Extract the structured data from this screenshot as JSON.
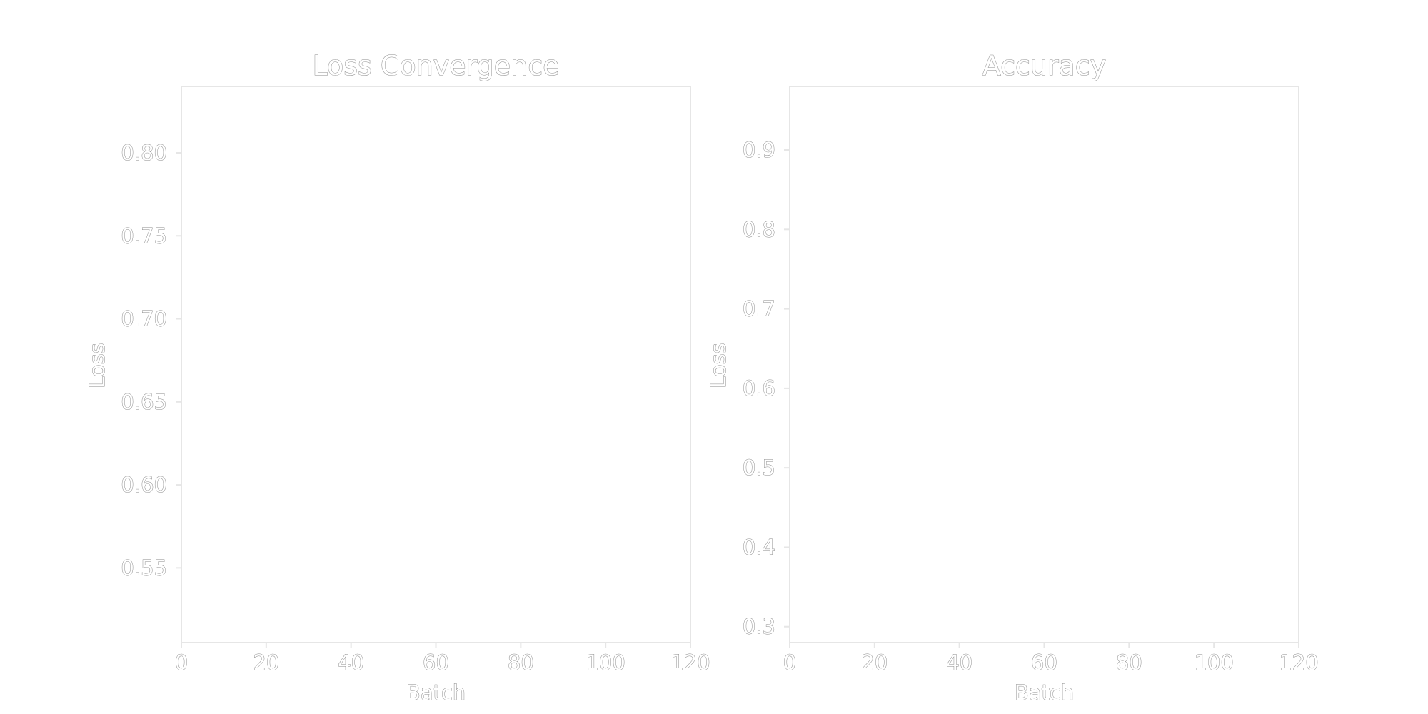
{
  "chart_data": [
    {
      "type": "line",
      "title": "Loss Convergence",
      "xlabel": "Batch",
      "ylabel": "Loss",
      "xlim": [
        0,
        120
      ],
      "ylim": [
        0.505,
        0.84
      ],
      "xticks": [
        0,
        20,
        40,
        60,
        80,
        100,
        120
      ],
      "xtick_labels": [
        "0",
        "20",
        "40",
        "60",
        "80",
        "100",
        "120"
      ],
      "yticks": [
        0.55,
        0.6,
        0.65,
        0.7,
        0.75,
        0.8
      ],
      "ytick_labels": [
        "0.55",
        "0.60",
        "0.65",
        "0.70",
        "0.75",
        "0.80"
      ],
      "grid": false,
      "series": []
    },
    {
      "type": "line",
      "title": "Accuracy",
      "xlabel": "Batch",
      "ylabel": "Loss",
      "xlim": [
        0,
        120
      ],
      "ylim": [
        0.28,
        0.98
      ],
      "xticks": [
        0,
        20,
        40,
        60,
        80,
        100,
        120
      ],
      "xtick_labels": [
        "0",
        "20",
        "40",
        "60",
        "80",
        "100",
        "120"
      ],
      "yticks": [
        0.3,
        0.4,
        0.5,
        0.6,
        0.7,
        0.8,
        0.9
      ],
      "ytick_labels": [
        "0.3",
        "0.4",
        "0.5",
        "0.6",
        "0.7",
        "0.8",
        "0.9"
      ],
      "grid": false,
      "series": []
    }
  ]
}
